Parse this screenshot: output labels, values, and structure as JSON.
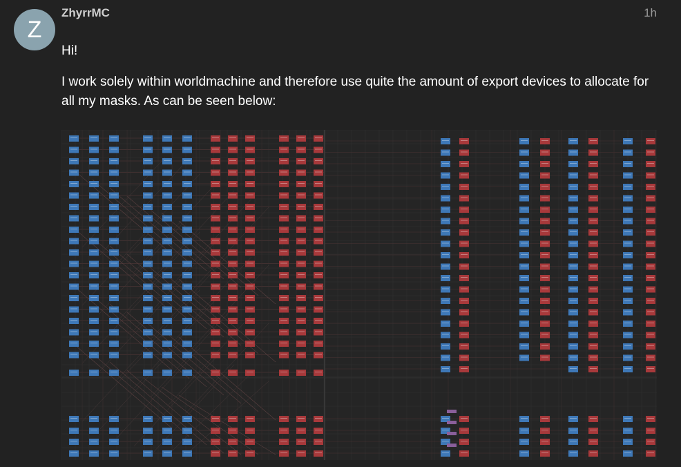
{
  "post": {
    "author": {
      "avatar_letter": "Z",
      "avatar_color": "#8aa3ae",
      "username": "ZhyrrMC"
    },
    "age": "1h",
    "paragraphs": [
      "Hi!",
      "I work solely within worldmachine and therefore use quite the amount of export devices to allocate for all my masks. As can be seen below:"
    ]
  },
  "image": {
    "subject": "node-graph",
    "colors": {
      "background": "#252525",
      "blue_node": "#3e78b7",
      "red_node": "#a8393b",
      "purple_node": "#8a5f9a",
      "wire": "#4a3434"
    }
  }
}
